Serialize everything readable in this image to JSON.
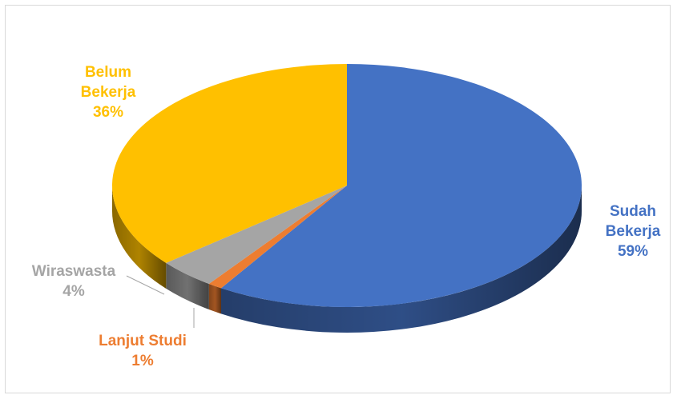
{
  "chart_data": {
    "type": "pie",
    "style": "3d",
    "title": "",
    "slices": [
      {
        "name": "Sudah Bekerja",
        "name_lines": [
          "Sudah",
          "Bekerja"
        ],
        "value": 59,
        "value_label": "59%",
        "color": "#4472C4"
      },
      {
        "name": "Lanjut Studi",
        "name_lines": [
          "Lanjut Studi"
        ],
        "value": 1,
        "value_label": "1%",
        "color": "#ED7D31"
      },
      {
        "name": "Wiraswasta",
        "name_lines": [
          "Wiraswasta"
        ],
        "value": 4,
        "value_label": "4%",
        "color": "#A5A5A5"
      },
      {
        "name": "Belum Bekerja",
        "name_lines": [
          "Belum",
          "Bekerja"
        ],
        "value": 36,
        "value_label": "36%",
        "color": "#FFC000"
      }
    ],
    "legend": "none",
    "data_labels": "category name and percentage"
  }
}
